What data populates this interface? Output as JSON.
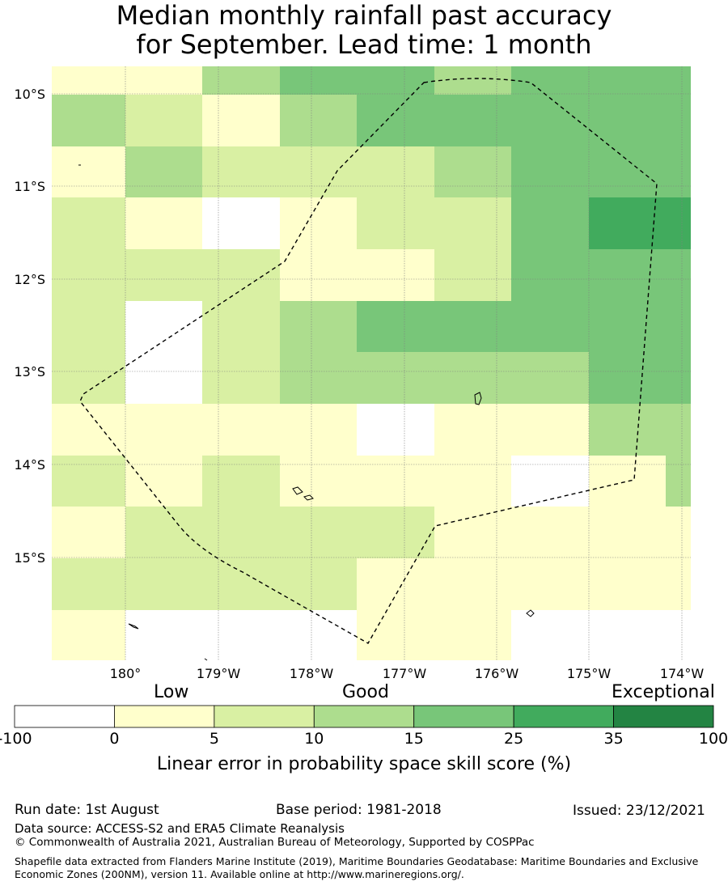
{
  "title_line1": "Median monthly rainfall past accuracy",
  "title_line2": "for September. Lead time: 1 month",
  "colors": {
    "lt0": "#ffffff",
    "0_5": "#ffffcc",
    "5_10": "#d9f0a3",
    "10_15": "#addd8e",
    "15_25": "#78c679",
    "25_35": "#41ab5d",
    "35_100": "#238443"
  },
  "map": {
    "lat_labels": [
      "10°S",
      "11°S",
      "12°S",
      "13°S",
      "14°S",
      "15°S"
    ],
    "lon_labels": [
      "180°",
      "179°W",
      "178°W",
      "177°W",
      "176°W",
      "175°W",
      "174°W"
    ],
    "grid_rows": [
      [
        1,
        1,
        3,
        4,
        4,
        3,
        4,
        4
      ],
      [
        3,
        2,
        1,
        3,
        4,
        4,
        4,
        4
      ],
      [
        1,
        3,
        2,
        2,
        2,
        3,
        4,
        4
      ],
      [
        2,
        1,
        0,
        1,
        2,
        2,
        4,
        5
      ],
      [
        2,
        2,
        2,
        1,
        1,
        2,
        4,
        4
      ],
      [
        2,
        0,
        2,
        3,
        4,
        4,
        4,
        4
      ],
      [
        2,
        0,
        2,
        3,
        3,
        3,
        3,
        4
      ],
      [
        1,
        1,
        1,
        1,
        0,
        1,
        1,
        3
      ],
      [
        2,
        1,
        2,
        1,
        1,
        1,
        0,
        1
      ],
      [
        1,
        2,
        2,
        2,
        2,
        1,
        1,
        1
      ],
      [
        2,
        2,
        2,
        2,
        1,
        1,
        1,
        1
      ],
      [
        1,
        0,
        0,
        0,
        1,
        1,
        0,
        0
      ]
    ]
  },
  "legend": {
    "category_labels": [
      "Low",
      "Good",
      "Exceptional"
    ],
    "tick_labels": [
      "-100",
      "0",
      "5",
      "10",
      "15",
      "25",
      "35",
      "100"
    ],
    "color_keys": [
      "lt0",
      "0_5",
      "5_10",
      "10_15",
      "15_25",
      "25_35",
      "35_100"
    ],
    "axis_label": "Linear error in probability space skill score (%)"
  },
  "footer": {
    "run_date": "Run date: 1st August",
    "base_period": "Base period: 1981-2018",
    "issued": "Issued: 23/12/2021",
    "data_source": "Data source: ACCESS-S2 and ERA5 Climate Reanalysis",
    "copyright": "© Commonwealth of Australia 2021, Australian Bureau of Meteorology, Supported by COSPPac",
    "shapefile": "Shapefile data extracted from Flanders Marine Institute (2019), Maritime Boundaries Geodatabase: Maritime Boundaries and Exclusive Economic Zones (200NM), version 11. Available online at http://www.marineregions.org/."
  }
}
